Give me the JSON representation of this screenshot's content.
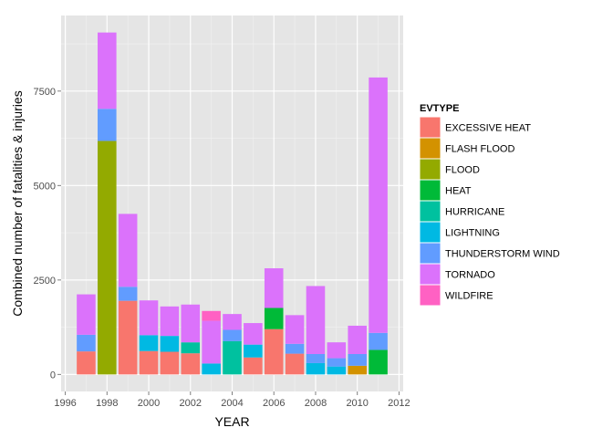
{
  "chart_data": {
    "type": "bar",
    "stacked": true,
    "title": "",
    "xlabel": "YEAR",
    "ylabel": "Combined number of fatalities & injuries",
    "xlim": [
      1995.8,
      2012.2
    ],
    "ylim": [
      -450,
      9500
    ],
    "x_ticks": [
      1996,
      1998,
      2000,
      2002,
      2004,
      2006,
      2008,
      2010,
      2012
    ],
    "y_ticks": [
      0,
      2500,
      5000,
      7500
    ],
    "grid": true,
    "legend": {
      "title": "EVTYPE",
      "position": "right",
      "entries": [
        {
          "label": "EXCESSIVE HEAT",
          "color": "#F8766D"
        },
        {
          "label": "FLASH FLOOD",
          "color": "#D39200"
        },
        {
          "label": "FLOOD",
          "color": "#93AA00"
        },
        {
          "label": "HEAT",
          "color": "#00BA38"
        },
        {
          "label": "HURRICANE",
          "color": "#00C19F"
        },
        {
          "label": "LIGHTNING",
          "color": "#00B9E3"
        },
        {
          "label": "THUNDERSTORM WIND",
          "color": "#619CFF"
        },
        {
          "label": "TORNADO",
          "color": "#DB72FB"
        },
        {
          "label": "WILDFIRE",
          "color": "#FF61C3"
        }
      ]
    },
    "years": [
      1997,
      1998,
      1999,
      2000,
      2001,
      2002,
      2003,
      2004,
      2005,
      2006,
      2007,
      2008,
      2009,
      2010,
      2011
    ],
    "series": [
      {
        "name": "EXCESSIVE HEAT",
        "values": [
          610,
          0,
          1950,
          620,
          600,
          560,
          0,
          0,
          450,
          1200,
          550,
          0,
          0,
          0,
          0
        ]
      },
      {
        "name": "FLASH FLOOD",
        "values": [
          0,
          0,
          0,
          0,
          0,
          0,
          0,
          0,
          0,
          0,
          0,
          0,
          0,
          230,
          0
        ]
      },
      {
        "name": "FLOOD",
        "values": [
          0,
          6180,
          0,
          0,
          0,
          0,
          0,
          0,
          0,
          0,
          0,
          0,
          0,
          0,
          0
        ]
      },
      {
        "name": "HEAT",
        "values": [
          0,
          0,
          0,
          0,
          0,
          0,
          0,
          0,
          0,
          560,
          0,
          0,
          0,
          0,
          650
        ]
      },
      {
        "name": "HURRICANE",
        "values": [
          0,
          0,
          0,
          0,
          0,
          290,
          0,
          880,
          0,
          0,
          0,
          0,
          0,
          0,
          0
        ]
      },
      {
        "name": "LIGHTNING",
        "values": [
          0,
          0,
          0,
          420,
          420,
          0,
          290,
          0,
          340,
          0,
          0,
          300,
          210,
          0,
          0
        ]
      },
      {
        "name": "THUNDERSTORM WIND",
        "values": [
          440,
          850,
          370,
          0,
          0,
          0,
          0,
          300,
          0,
          0,
          260,
          240,
          220,
          310,
          450
        ]
      },
      {
        "name": "TORNADO",
        "values": [
          1070,
          2020,
          1930,
          920,
          780,
          1000,
          1130,
          420,
          570,
          1050,
          760,
          1800,
          420,
          750,
          6760
        ]
      },
      {
        "name": "WILDFIRE",
        "values": [
          0,
          0,
          0,
          0,
          0,
          0,
          260,
          0,
          0,
          0,
          0,
          0,
          0,
          0,
          0
        ]
      }
    ]
  }
}
